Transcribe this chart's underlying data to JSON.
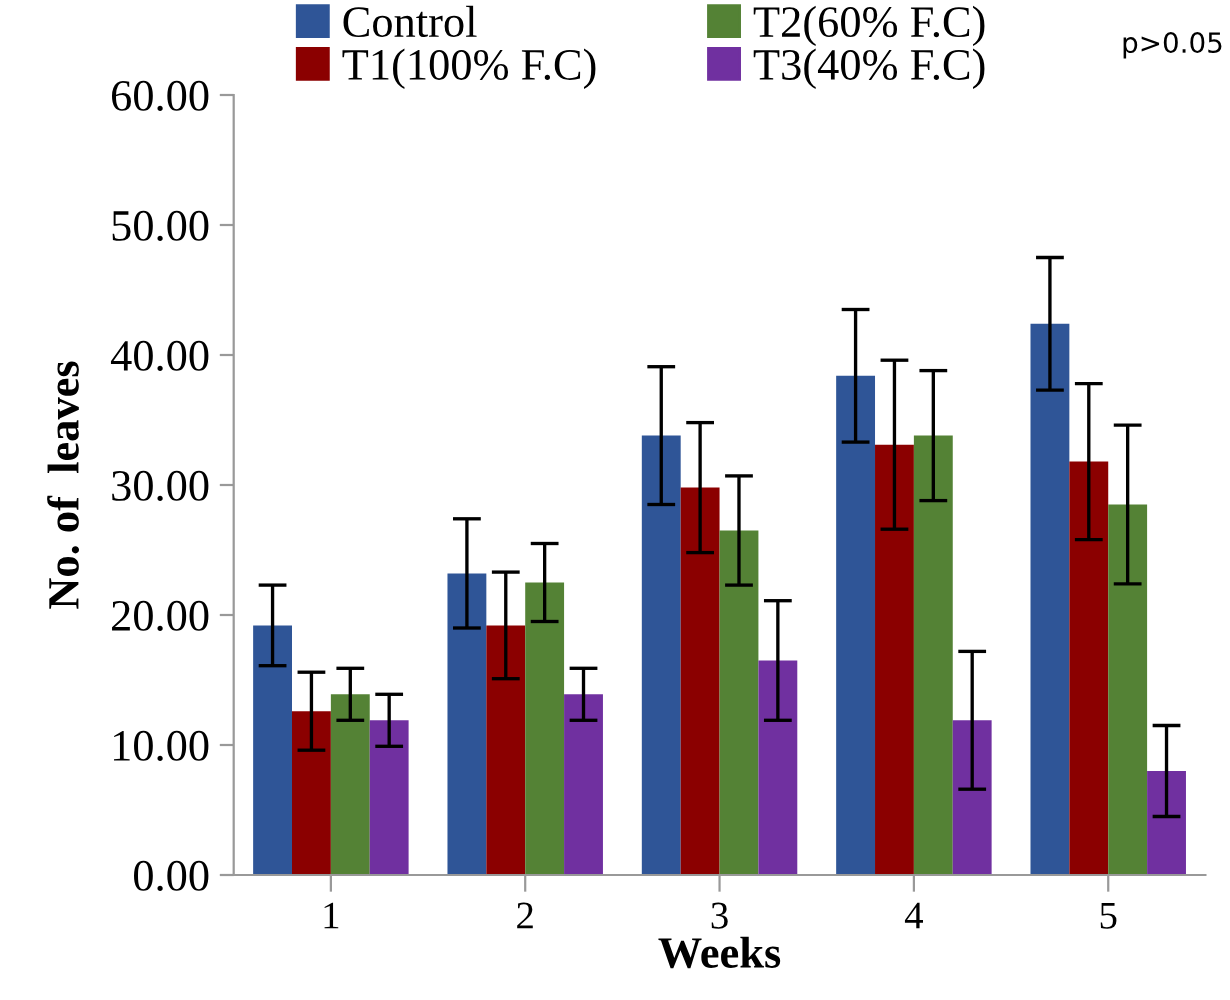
{
  "chart_data": {
    "type": "bar",
    "xlabel": "Weeks",
    "ylabel": "No. of  leaves",
    "categories": [
      "1",
      "2",
      "3",
      "4",
      "5"
    ],
    "series": [
      {
        "name": "Control",
        "color": "#2f5597",
        "values": [
          19.2,
          23.2,
          33.8,
          38.4,
          42.4
        ],
        "errors": [
          3.1,
          4.2,
          5.3,
          5.1,
          5.1
        ]
      },
      {
        "name": "T1(100% F.C)",
        "color": "#8b0000",
        "values": [
          12.6,
          19.2,
          29.8,
          33.1,
          31.8
        ],
        "errors": [
          3.0,
          4.1,
          5.0,
          6.5,
          6.0
        ]
      },
      {
        "name": "T2(60% F.C)",
        "color": "#548235",
        "values": [
          13.9,
          22.5,
          26.5,
          33.8,
          28.5
        ],
        "errors": [
          2.0,
          3.0,
          4.2,
          5.0,
          6.1
        ]
      },
      {
        "name": "T3(40% F.C)",
        "color": "#7030a0",
        "values": [
          11.9,
          13.9,
          16.5,
          11.9,
          8.0
        ],
        "errors": [
          2.0,
          2.0,
          4.6,
          5.3,
          3.5
        ]
      }
    ],
    "ylim": [
      0,
      60
    ],
    "yticks": [
      {
        "value": 0,
        "label": "0.00"
      },
      {
        "value": 10,
        "label": "10.00"
      },
      {
        "value": 20,
        "label": "20.00"
      },
      {
        "value": 30,
        "label": "30.00"
      },
      {
        "value": 40,
        "label": "40.00"
      },
      {
        "value": 50,
        "label": "50.00"
      },
      {
        "value": 60,
        "label": "60.00"
      }
    ],
    "annotations": [
      "p>0.05"
    ],
    "legend": "top",
    "grid": false
  }
}
